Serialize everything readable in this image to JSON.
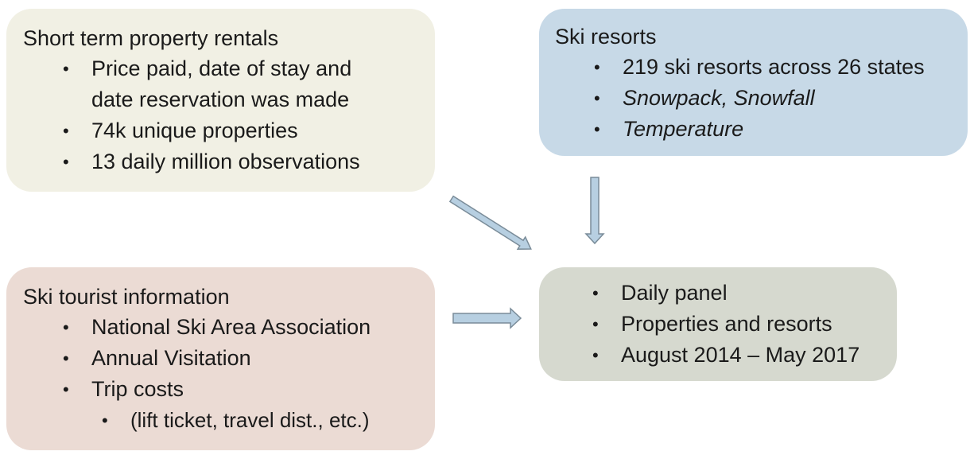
{
  "colors": {
    "rentals_box": "#f1f0e4",
    "resorts_box": "#c7d9e7",
    "tourist_box": "#ebdbd4",
    "panel_box": "#d6d9cf",
    "arrow_fill": "#b7cfe1",
    "arrow_stroke": "#7a8c99"
  },
  "rentals": {
    "title": "Short term property rentals",
    "items": [
      "Price paid, date of stay and",
      "date reservation was made",
      "74k unique properties",
      "13 daily million observations"
    ]
  },
  "resorts": {
    "title": "Ski resorts",
    "items": [
      "219  ski resorts across 26 states",
      "Snowpack, Snowfall",
      "Temperature"
    ]
  },
  "tourist": {
    "title": "Ski tourist information",
    "items": [
      "National Ski Area Association",
      "Annual Visitation",
      "Trip costs"
    ],
    "sub_items": [
      "(lift ticket, travel dist., etc.)"
    ]
  },
  "panel": {
    "items": [
      "Daily panel",
      "Properties and resorts",
      "August 2014 – May 2017"
    ]
  },
  "bullet_glyph": "•"
}
